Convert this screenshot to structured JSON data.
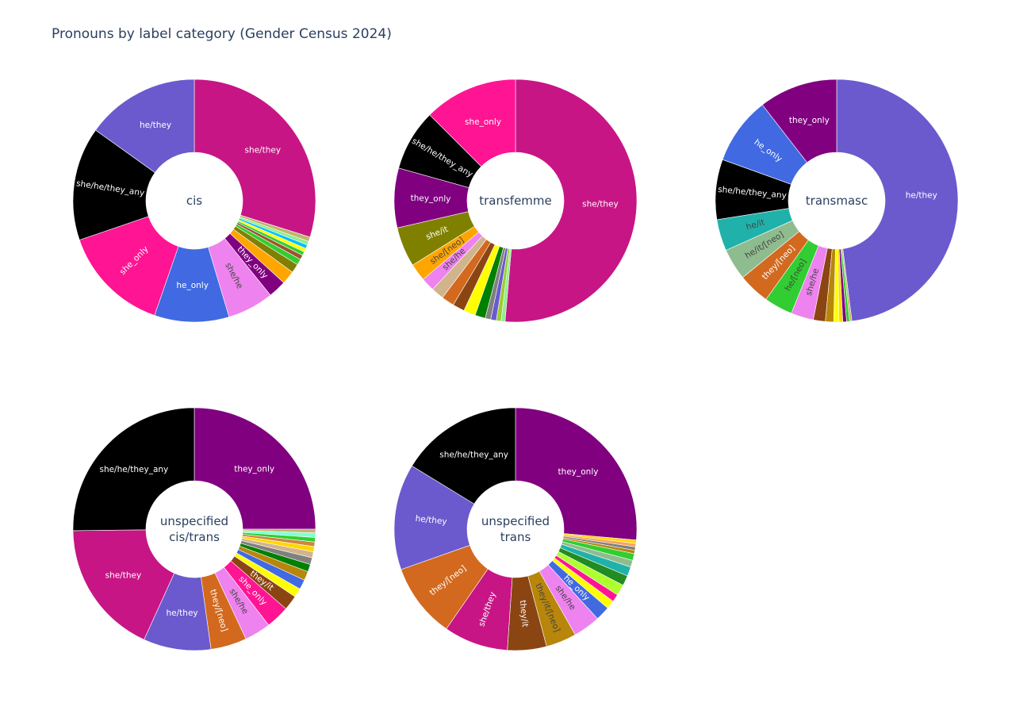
{
  "title": "Pronouns by label category (Gender Census 2024)",
  "colors": {
    "she/they": "#c71585",
    "he/they": "#6a5acd",
    "she/he/they_any": "#000000",
    "she_only": "#ff1493",
    "he_only": "#4169e1",
    "she/he": "#ee82ee",
    "they_only": "#800080",
    "she/it": "#808000",
    "she/[neo]": "#ffa500",
    "he/it": "#20b2aa",
    "he/it/[neo]": "#8fbc8f",
    "they/[neo]": "#d2691e",
    "he/[neo]": "#32cd32",
    "they/it": "#8b4513",
    "they/it/[neo]": "#b8860b",
    "o1": "#ffa500",
    "o2": "#808000",
    "o3": "#32cd32",
    "o4": "#d2691e",
    "o5": "#ffff00",
    "o6": "#00bfff",
    "o7": "#228b22",
    "o8": "#bdb76b",
    "o9": "#a0522d",
    "o10": "#d2b48c",
    "o11": "#8b4513",
    "o12": "#008000",
    "o13": "#adff2f",
    "o14": "#808080",
    "o15": "#b8860b",
    "o16": "#ffd700",
    "o17": "#9acd32",
    "o18": "#90ee90",
    "o19": "#f4a460",
    "o20": "#20b2aa",
    "o21": "#8fbc8f",
    "o22": "#7fffd4",
    "o23": "#daa520",
    "o24": "#cd853f"
  },
  "chart_data": [
    {
      "type": "pie",
      "center_label": [
        "cis"
      ],
      "slices": [
        {
          "label": "she/they",
          "value": 30.0,
          "key": "she/they",
          "text": "light"
        },
        {
          "label": "",
          "value": 0.6,
          "key": "o8"
        },
        {
          "label": "",
          "value": 0.5,
          "key": "o18"
        },
        {
          "label": "",
          "value": 0.5,
          "key": "o6"
        },
        {
          "label": "",
          "value": 0.5,
          "key": "o5"
        },
        {
          "label": "",
          "value": 0.5,
          "key": "o3"
        },
        {
          "label": "",
          "value": 0.6,
          "key": "o9"
        },
        {
          "label": "",
          "value": 0.8,
          "key": "o3"
        },
        {
          "label": "",
          "value": 1.2,
          "key": "o2"
        },
        {
          "label": "",
          "value": 1.8,
          "key": "o1"
        },
        {
          "label": "they_only",
          "value": 2.4,
          "key": "they_only",
          "text": "light"
        },
        {
          "label": "she/he",
          "value": 6.2,
          "key": "she/he",
          "text": "dark"
        },
        {
          "label": "he_only",
          "value": 10.0,
          "key": "he_only",
          "text": "light"
        },
        {
          "label": "she_only",
          "value": 14.5,
          "key": "she_only",
          "text": "light"
        },
        {
          "label": "she/he/they_any",
          "value": 15.2,
          "key": "she/he/they_any",
          "text": "light"
        },
        {
          "label": "he/they",
          "value": 15.2,
          "key": "he/they",
          "text": "light"
        }
      ]
    },
    {
      "type": "pie",
      "center_label": [
        "transfemme"
      ],
      "slices": [
        {
          "label": "she/they",
          "value": 48.5,
          "key": "she/they",
          "text": "light"
        },
        {
          "label": "",
          "value": 0.5,
          "key": "o18"
        },
        {
          "label": "",
          "value": 0.6,
          "key": "o17"
        },
        {
          "label": "",
          "value": 0.7,
          "key": "he/they"
        },
        {
          "label": "",
          "value": 0.7,
          "key": "o14"
        },
        {
          "label": "",
          "value": 1.3,
          "key": "o12"
        },
        {
          "label": "",
          "value": 1.5,
          "key": "o5"
        },
        {
          "label": "",
          "value": 1.5,
          "key": "o11"
        },
        {
          "label": "",
          "value": 1.6,
          "key": "o4"
        },
        {
          "label": "",
          "value": 1.6,
          "key": "o10"
        },
        {
          "label": "she/he",
          "value": 1.7,
          "key": "she/he",
          "text": "dark"
        },
        {
          "label": "she/[neo]",
          "value": 2.2,
          "key": "she/[neo]",
          "text": "dark"
        },
        {
          "label": "she/it",
          "value": 5.0,
          "key": "she/it",
          "text": "light"
        },
        {
          "label": "they_only",
          "value": 7.5,
          "key": "they_only",
          "text": "light"
        },
        {
          "label": "she/he/they_any",
          "value": 7.7,
          "key": "she/he/they_any",
          "text": "light"
        },
        {
          "label": "she_only",
          "value": 11.8,
          "key": "she_only",
          "text": "light"
        }
      ]
    },
    {
      "type": "pie",
      "center_label": [
        "transmasc"
      ],
      "slices": [
        {
          "label": "he/they",
          "value": 48.0,
          "key": "he/they",
          "text": "light"
        },
        {
          "label": "",
          "value": 0.3,
          "key": "o8"
        },
        {
          "label": "",
          "value": 0.4,
          "key": "o3"
        },
        {
          "label": "",
          "value": 0.5,
          "key": "they_only"
        },
        {
          "label": "",
          "value": 0.5,
          "key": "o16"
        },
        {
          "label": "",
          "value": 0.7,
          "key": "o5"
        },
        {
          "label": "",
          "value": 1.1,
          "key": "o15"
        },
        {
          "label": "",
          "value": 1.6,
          "key": "o11"
        },
        {
          "label": "she/he",
          "value": 3.0,
          "key": "she/he",
          "text": "dark"
        },
        {
          "label": "he/[neo]",
          "value": 3.8,
          "key": "he/[neo]",
          "text": "dark"
        },
        {
          "label": "they/[neo]",
          "value": 4.2,
          "key": "they/[neo]",
          "text": "light"
        },
        {
          "label": "he/it/[neo]",
          "value": 4.2,
          "key": "he/it/[neo]",
          "text": "dark"
        },
        {
          "label": "he/it",
          "value": 4.2,
          "key": "he/it",
          "text": "dark"
        },
        {
          "label": "she/he/they_any",
          "value": 8.0,
          "key": "she/he/they_any",
          "text": "light"
        },
        {
          "label": "he_only",
          "value": 9.0,
          "key": "he_only",
          "text": "light"
        },
        {
          "label": "they_only",
          "value": 10.5,
          "key": "they_only",
          "text": "light"
        }
      ]
    },
    {
      "type": "pie",
      "center_label": [
        "unspecified",
        "cis/trans"
      ],
      "slices": [
        {
          "label": "they_only",
          "value": 25.0,
          "key": "they_only",
          "text": "light"
        },
        {
          "label": "",
          "value": 0.5,
          "key": "o8"
        },
        {
          "label": "",
          "value": 0.6,
          "key": "o22"
        },
        {
          "label": "",
          "value": 0.6,
          "key": "o3"
        },
        {
          "label": "",
          "value": 0.6,
          "key": "o24"
        },
        {
          "label": "",
          "value": 0.7,
          "key": "o16"
        },
        {
          "label": "",
          "value": 0.8,
          "key": "o10"
        },
        {
          "label": "",
          "value": 0.9,
          "key": "o14"
        },
        {
          "label": "",
          "value": 1.0,
          "key": "o12"
        },
        {
          "label": "",
          "value": 1.2,
          "key": "o15"
        },
        {
          "label": "",
          "value": 1.3,
          "key": "he_only"
        },
        {
          "label": "",
          "value": 1.2,
          "key": "o5"
        },
        {
          "label": "they/it",
          "value": 2.0,
          "key": "they/it",
          "text": "light"
        },
        {
          "label": "she_only",
          "value": 3.1,
          "key": "she_only",
          "text": "light"
        },
        {
          "label": "she/he",
          "value": 3.5,
          "key": "she/he",
          "text": "dark"
        },
        {
          "label": "they/[neo]",
          "value": 4.8,
          "key": "they/[neo]",
          "text": "light"
        },
        {
          "label": "he/they",
          "value": 9.0,
          "key": "he/they",
          "text": "light"
        },
        {
          "label": "she/they",
          "value": 18.0,
          "key": "she/they",
          "text": "light"
        },
        {
          "label": "she/he/they_any",
          "value": 25.2,
          "key": "she/he/they_any",
          "text": "light"
        }
      ]
    },
    {
      "type": "pie",
      "center_label": [
        "unspecified",
        "trans"
      ],
      "slices": [
        {
          "label": "they_only",
          "value": 23.4,
          "key": "they_only",
          "text": "light"
        },
        {
          "label": "",
          "value": 0.4,
          "key": "o16"
        },
        {
          "label": "",
          "value": 0.4,
          "key": "o19"
        },
        {
          "label": "",
          "value": 0.4,
          "key": "o14"
        },
        {
          "label": "",
          "value": 0.4,
          "key": "o15"
        },
        {
          "label": "",
          "value": 0.8,
          "key": "o3"
        },
        {
          "label": "",
          "value": 0.8,
          "key": "o21"
        },
        {
          "label": "",
          "value": 1.1,
          "key": "o20"
        },
        {
          "label": "",
          "value": 1.2,
          "key": "o7"
        },
        {
          "label": "",
          "value": 1.3,
          "key": "o13"
        },
        {
          "label": "",
          "value": 0.9,
          "key": "she_only"
        },
        {
          "label": "",
          "value": 1.0,
          "key": "o5"
        },
        {
          "label": "he_only",
          "value": 1.7,
          "key": "he_only",
          "text": "light"
        },
        {
          "label": "she/he",
          "value": 3.2,
          "key": "she/he",
          "text": "dark"
        },
        {
          "label": "they/it/[neo]",
          "value": 3.6,
          "key": "they/it/[neo]",
          "text": "dark"
        },
        {
          "label": "they/it",
          "value": 4.6,
          "key": "they/it",
          "text": "light"
        },
        {
          "label": "she/they",
          "value": 7.6,
          "key": "she/they",
          "text": "light"
        },
        {
          "label": "they/[neo]",
          "value": 8.8,
          "key": "they/[neo]",
          "text": "light"
        },
        {
          "label": "he/they",
          "value": 12.5,
          "key": "he/they",
          "text": "light"
        },
        {
          "label": "she/he/they_any",
          "value": 14.4,
          "key": "she/he/they_any",
          "text": "light"
        }
      ]
    }
  ]
}
